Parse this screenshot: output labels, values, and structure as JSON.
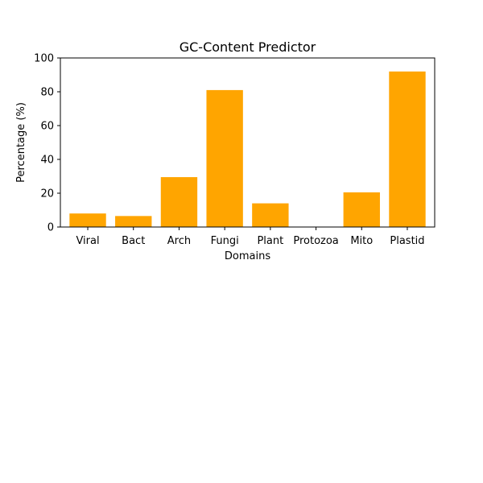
{
  "chart_data": {
    "type": "bar",
    "title": "GC-Content Predictor",
    "xlabel": "Domains",
    "ylabel": "Percentage (%)",
    "categories": [
      "Viral",
      "Bact",
      "Arch",
      "Fungi",
      "Plant",
      "Protozoa",
      "Mito",
      "Plastid"
    ],
    "values": [
      8,
      6.5,
      29.5,
      81,
      14,
      0,
      20.5,
      92
    ],
    "ylim": [
      0,
      100
    ],
    "yticks": [
      "0",
      "20",
      "40",
      "60",
      "80",
      "100"
    ],
    "bar_color": "#ffa500",
    "grid": false
  }
}
